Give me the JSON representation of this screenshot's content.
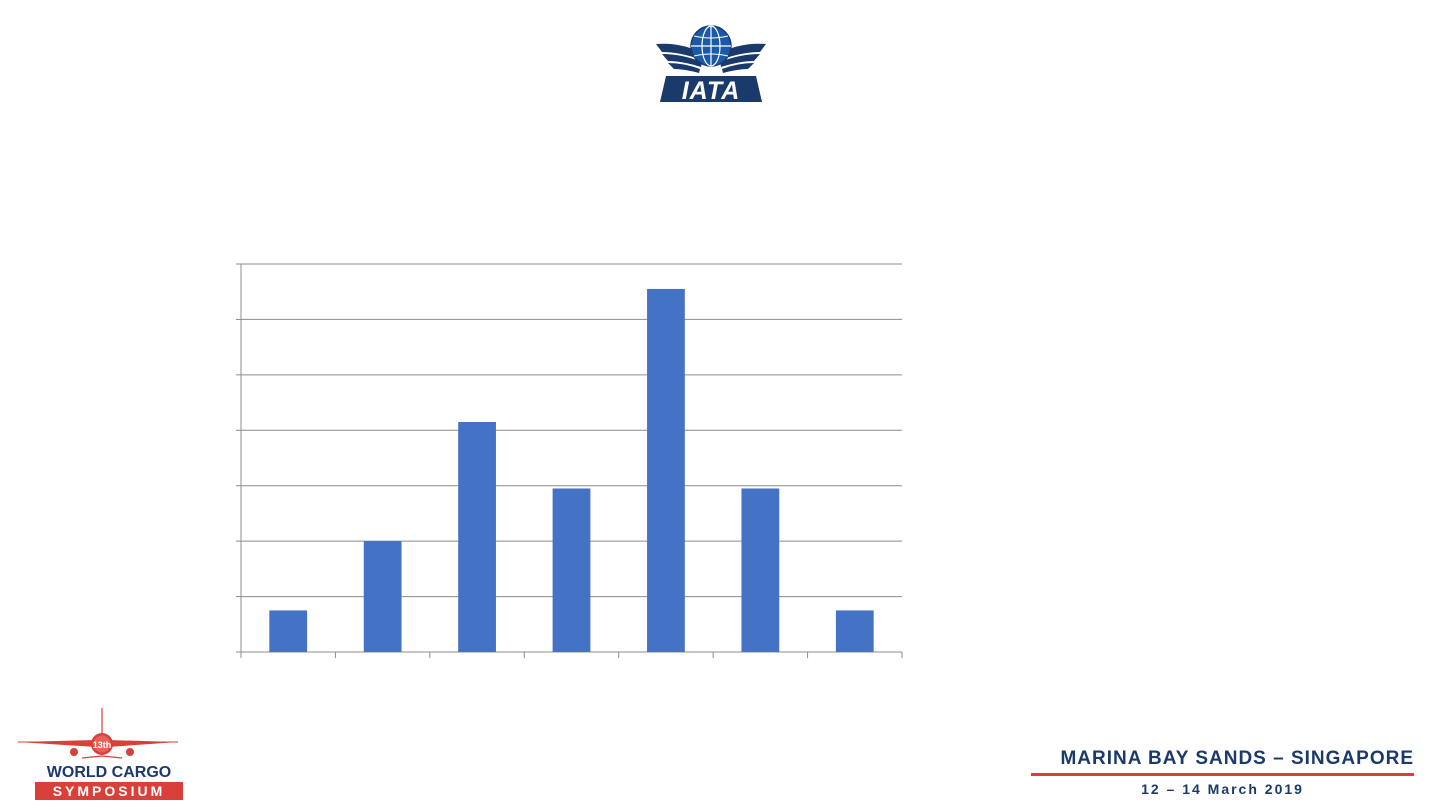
{
  "branding": {
    "iata_logo_text": "IATA",
    "event_line1": "WORLD CARGO",
    "event_line2": "SYMPOSIUM",
    "edition_badge": "13th",
    "venue": "MARINA BAY SANDS – SINGAPORE",
    "dates": "12 – 14 March 2019"
  },
  "colors": {
    "bar": "#4472c4",
    "brand_navy": "#1a3a6b",
    "brand_red": "#d9403a",
    "grid": "#8c8c8c"
  },
  "chart_data": {
    "type": "bar",
    "categories": [
      "",
      "",
      "",
      "",
      "",
      "",
      ""
    ],
    "values": [
      0.75,
      2.0,
      4.15,
      2.95,
      6.55,
      2.95,
      0.75
    ],
    "ylim": [
      0,
      7
    ],
    "yticks": [
      0,
      1,
      2,
      3,
      4,
      5,
      6,
      7
    ],
    "grid": true,
    "legend": "none",
    "title": "",
    "xlabel": "",
    "ylabel": ""
  }
}
